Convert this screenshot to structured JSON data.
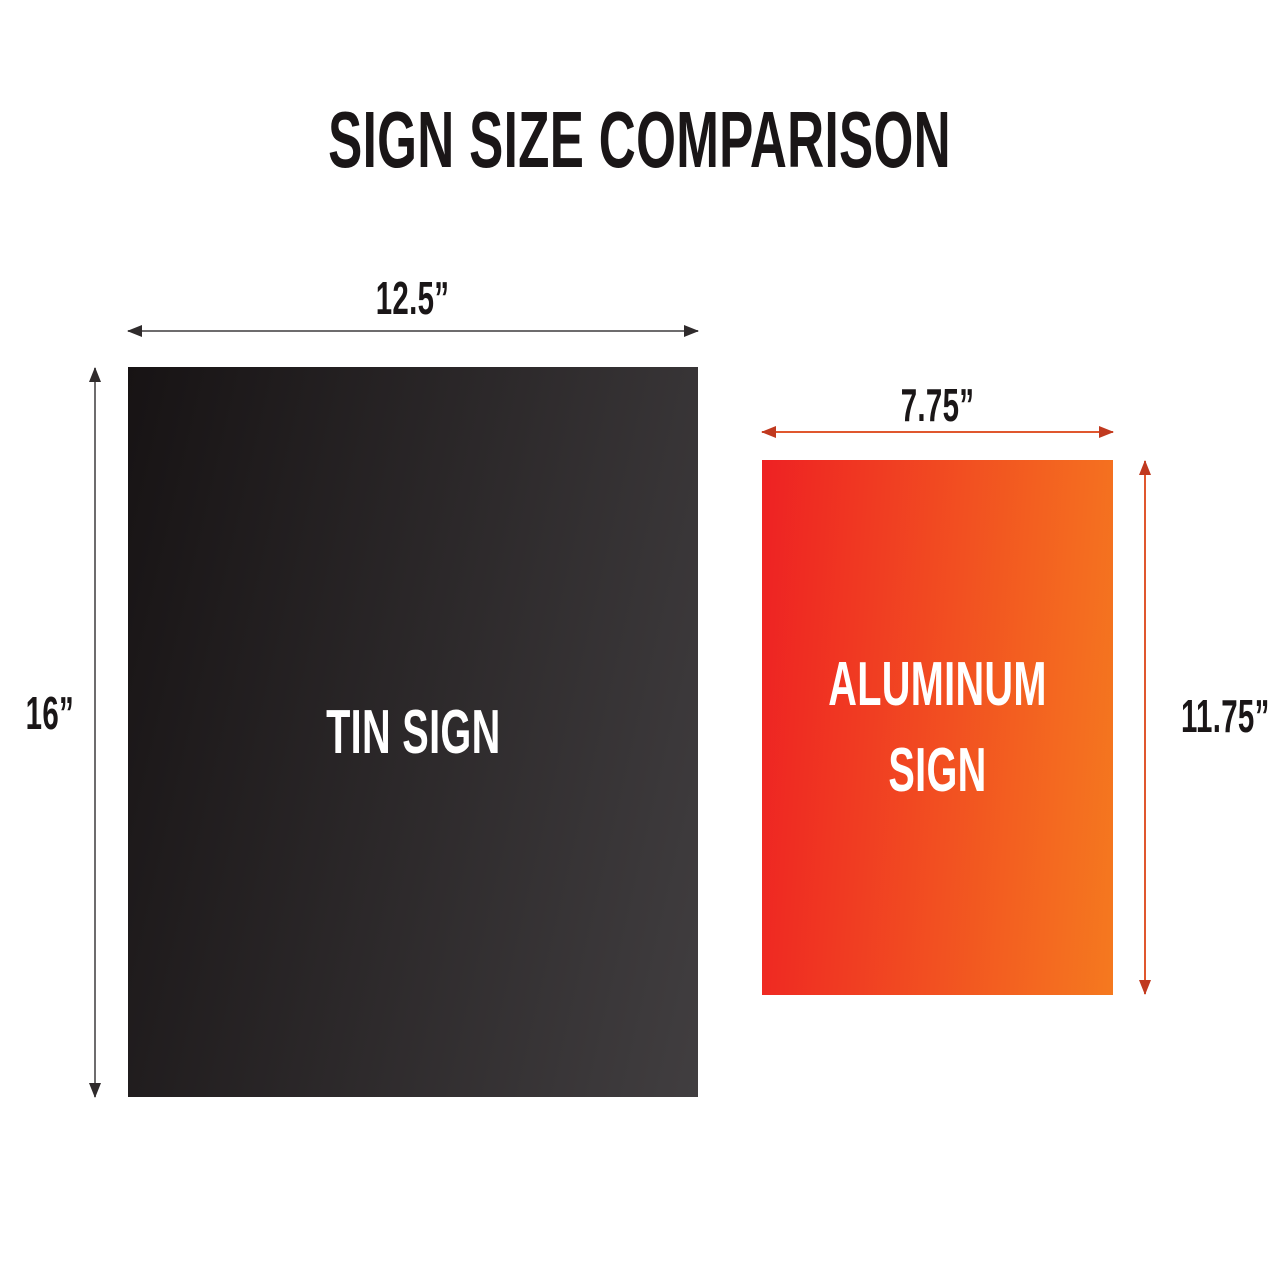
{
  "title": "SIGN SIZE COMPARISON",
  "tin_sign": {
    "label": "TIN SIGN",
    "width_label": "12.5”",
    "height_label": "16”"
  },
  "aluminum_sign": {
    "label": "ALUMINUM SIGN",
    "width_label": "7.75”",
    "height_label": "11.75”"
  },
  "colors": {
    "background": "#ffffff",
    "ink": "#1a1617",
    "sign-text": "#ffffff",
    "tin-g1": "#171314",
    "tin-g2": "#413e40",
    "tin-arrow-line": "#6e6c6d",
    "tin-arrow-head": "#2f2b2c",
    "alum-g1": "#ee2123",
    "alum-g2": "#f5791f",
    "alum-arrow-line": "#e0572e",
    "alum-arrow-head": "#c0391f"
  }
}
